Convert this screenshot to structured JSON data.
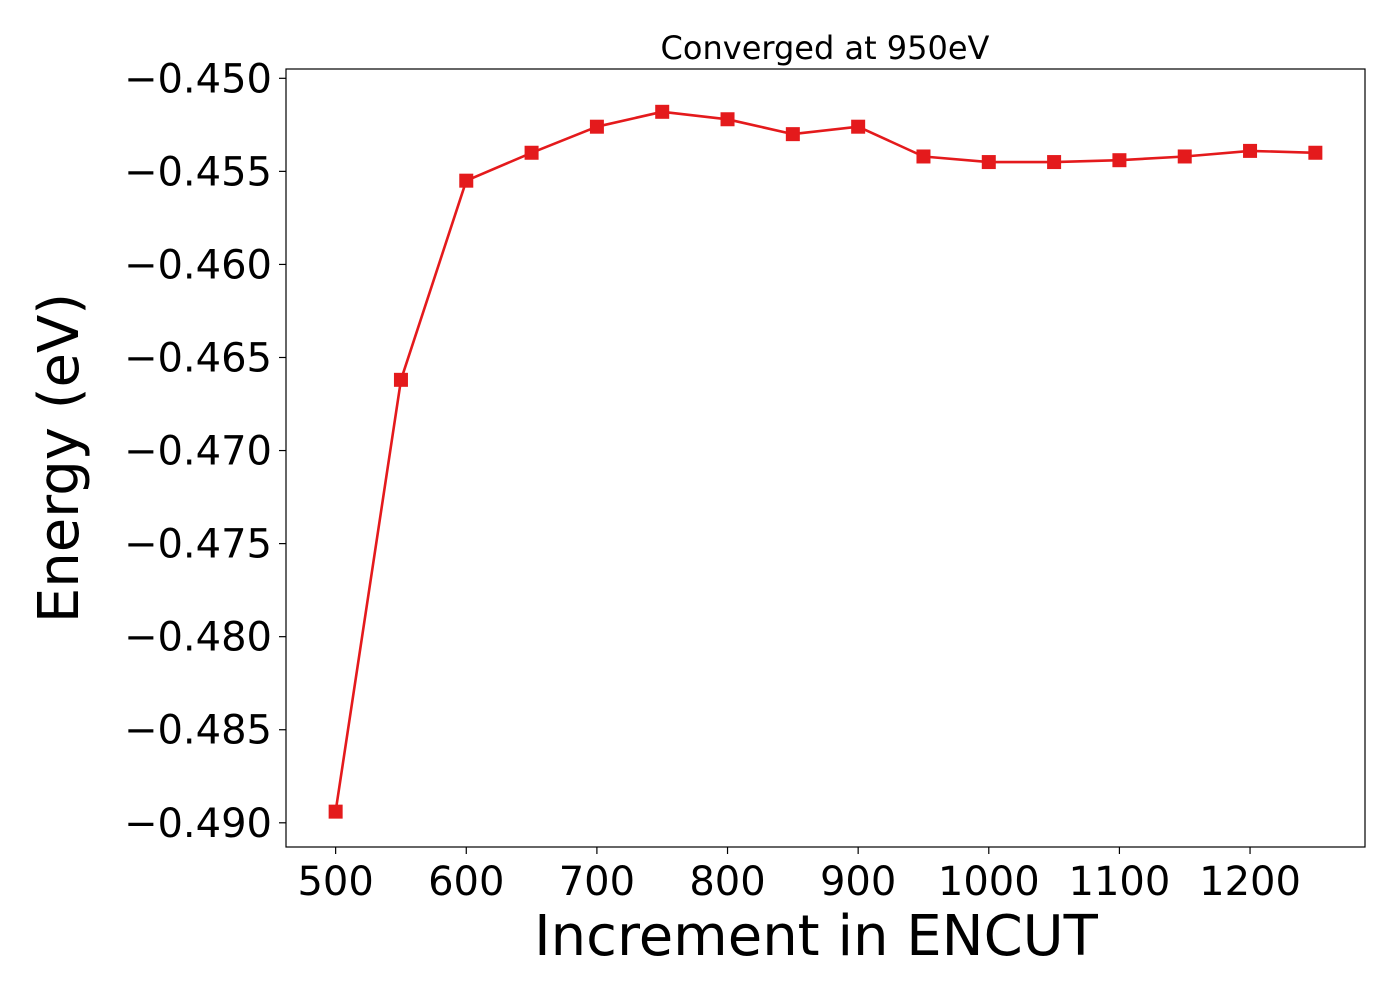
{
  "chart_data": {
    "type": "line",
    "title": "Converged at 950eV",
    "xlabel": "Increment in ENCUT",
    "ylabel": "Energy (eV)",
    "xlim": [
      462,
      1288
    ],
    "ylim": [
      -0.4913,
      -0.4495
    ],
    "xticks": [
      500,
      600,
      700,
      800,
      900,
      1000,
      1100,
      1200
    ],
    "yticks": [
      -0.45,
      -0.455,
      -0.46,
      -0.465,
      -0.47,
      -0.475,
      -0.48,
      -0.485,
      -0.49
    ],
    "ytick_labels": [
      "−0.450",
      "−0.455",
      "−0.460",
      "−0.465",
      "−0.470",
      "−0.475",
      "−0.480",
      "−0.485",
      "−0.490"
    ],
    "grid": false,
    "series": [
      {
        "color": "#e41a1c",
        "marker": "square",
        "x": [
          500,
          550,
          600,
          650,
          700,
          750,
          800,
          850,
          900,
          950,
          1000,
          1050,
          1100,
          1150,
          1200,
          1250
        ],
        "y": [
          -0.4894,
          -0.4662,
          -0.4555,
          -0.454,
          -0.4526,
          -0.4518,
          -0.4522,
          -0.453,
          -0.4526,
          -0.4542,
          -0.4545,
          -0.4545,
          -0.4544,
          -0.4542,
          -0.4539,
          -0.454
        ]
      }
    ]
  }
}
